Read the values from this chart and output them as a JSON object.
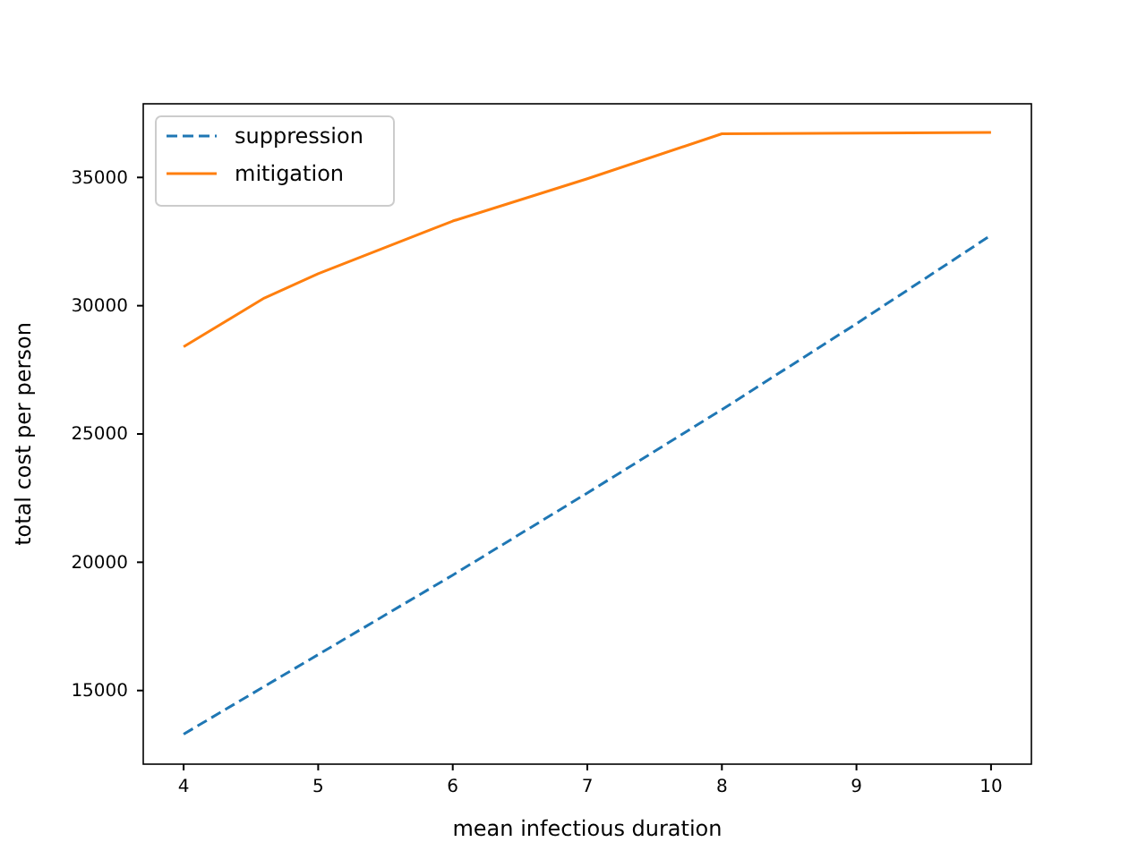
{
  "chart_data": {
    "type": "line",
    "xlabel": "mean infectious duration",
    "ylabel": "total cost per person",
    "xlim": [
      3.7,
      10.3
    ],
    "xticks": [
      4,
      5,
      6,
      7,
      8,
      9,
      10
    ],
    "ylim": [
      12130,
      37870
    ],
    "yticks": [
      15000,
      20000,
      25000,
      30000,
      35000
    ],
    "legend": "top left",
    "grid": false,
    "series": [
      {
        "name": "suppression",
        "color": "#1f77b4",
        "line_style": "dashed",
        "x": [
          4,
          5,
          6,
          7,
          8,
          9,
          10
        ],
        "values": [
          13300,
          16400,
          19500,
          22700,
          25950,
          29300,
          32750
        ]
      },
      {
        "name": "mitigation",
        "color": "#ff7f0e",
        "line_style": "solid",
        "x": [
          4,
          4.6,
          5,
          6,
          7,
          8,
          10
        ],
        "values": [
          28400,
          30300,
          31250,
          33300,
          34950,
          36700,
          36750
        ]
      }
    ]
  }
}
